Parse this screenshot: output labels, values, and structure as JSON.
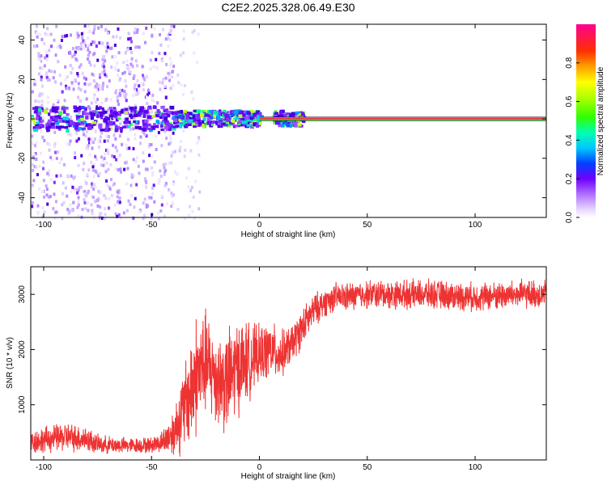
{
  "title": "C2E2.2025.328.06.49.E30",
  "chart_data": [
    {
      "type": "heatmap",
      "title": "C2E2.2025.328.06.49.E30",
      "xlabel": "Height of straight line (km)",
      "ylabel": "Frequency (Hz)",
      "xlim": [
        -106,
        133
      ],
      "ylim": [
        -50,
        48
      ],
      "xticks": [
        -100,
        -50,
        0,
        50,
        100
      ],
      "yticks": [
        -40,
        -20,
        0,
        20,
        40
      ],
      "signal": {
        "center_frequency_hz": 0,
        "noise_region_km": [
          -106,
          -40
        ],
        "clusters_km": [
          [
            -106,
            -40
          ],
          [
            -40,
            -22
          ],
          [
            -22,
            -10
          ],
          [
            -10,
            0
          ],
          [
            6,
            20
          ]
        ],
        "steady_line_km": [
          0,
          133
        ]
      },
      "colorbar": {
        "label": "Normalized spectral amplitude",
        "ticks": [
          0.0,
          0.2,
          0.4,
          0.6,
          0.8
        ],
        "range": [
          0,
          1
        ]
      }
    },
    {
      "type": "line",
      "xlabel": "Height of straight line (km)",
      "ylabel": "SNR (10 * v/v)",
      "xlim": [
        -106,
        133
      ],
      "ylim": [
        0,
        3500
      ],
      "xticks": [
        -100,
        -50,
        0,
        50,
        100
      ],
      "yticks": [
        1000,
        2000,
        3000
      ],
      "color": "#ee3333",
      "series": [
        {
          "name": "SNR",
          "x": [
            -106,
            -90,
            -80,
            -75,
            -60,
            -50,
            -45,
            -40,
            -35,
            -30,
            -25,
            -20,
            -15,
            -10,
            -5,
            0,
            5,
            10,
            15,
            20,
            25,
            30,
            35,
            40,
            50,
            60,
            80,
            100,
            120,
            133
          ],
          "y": [
            330,
            420,
            380,
            280,
            260,
            270,
            330,
            500,
            900,
            1500,
            1750,
            1500,
            1400,
            1700,
            1800,
            1900,
            2000,
            1900,
            2100,
            2400,
            2700,
            2850,
            2950,
            2950,
            3000,
            3000,
            3000,
            2950,
            3000,
            3000
          ],
          "noise_amplitude": [
            260,
            300,
            280,
            200,
            160,
            170,
            230,
            500,
            900,
            1300,
            1100,
            1000,
            1100,
            1000,
            800,
            600,
            600,
            500,
            400,
            400,
            350,
            300,
            300,
            300,
            300,
            300,
            300,
            300,
            300,
            300
          ]
        }
      ]
    }
  ]
}
